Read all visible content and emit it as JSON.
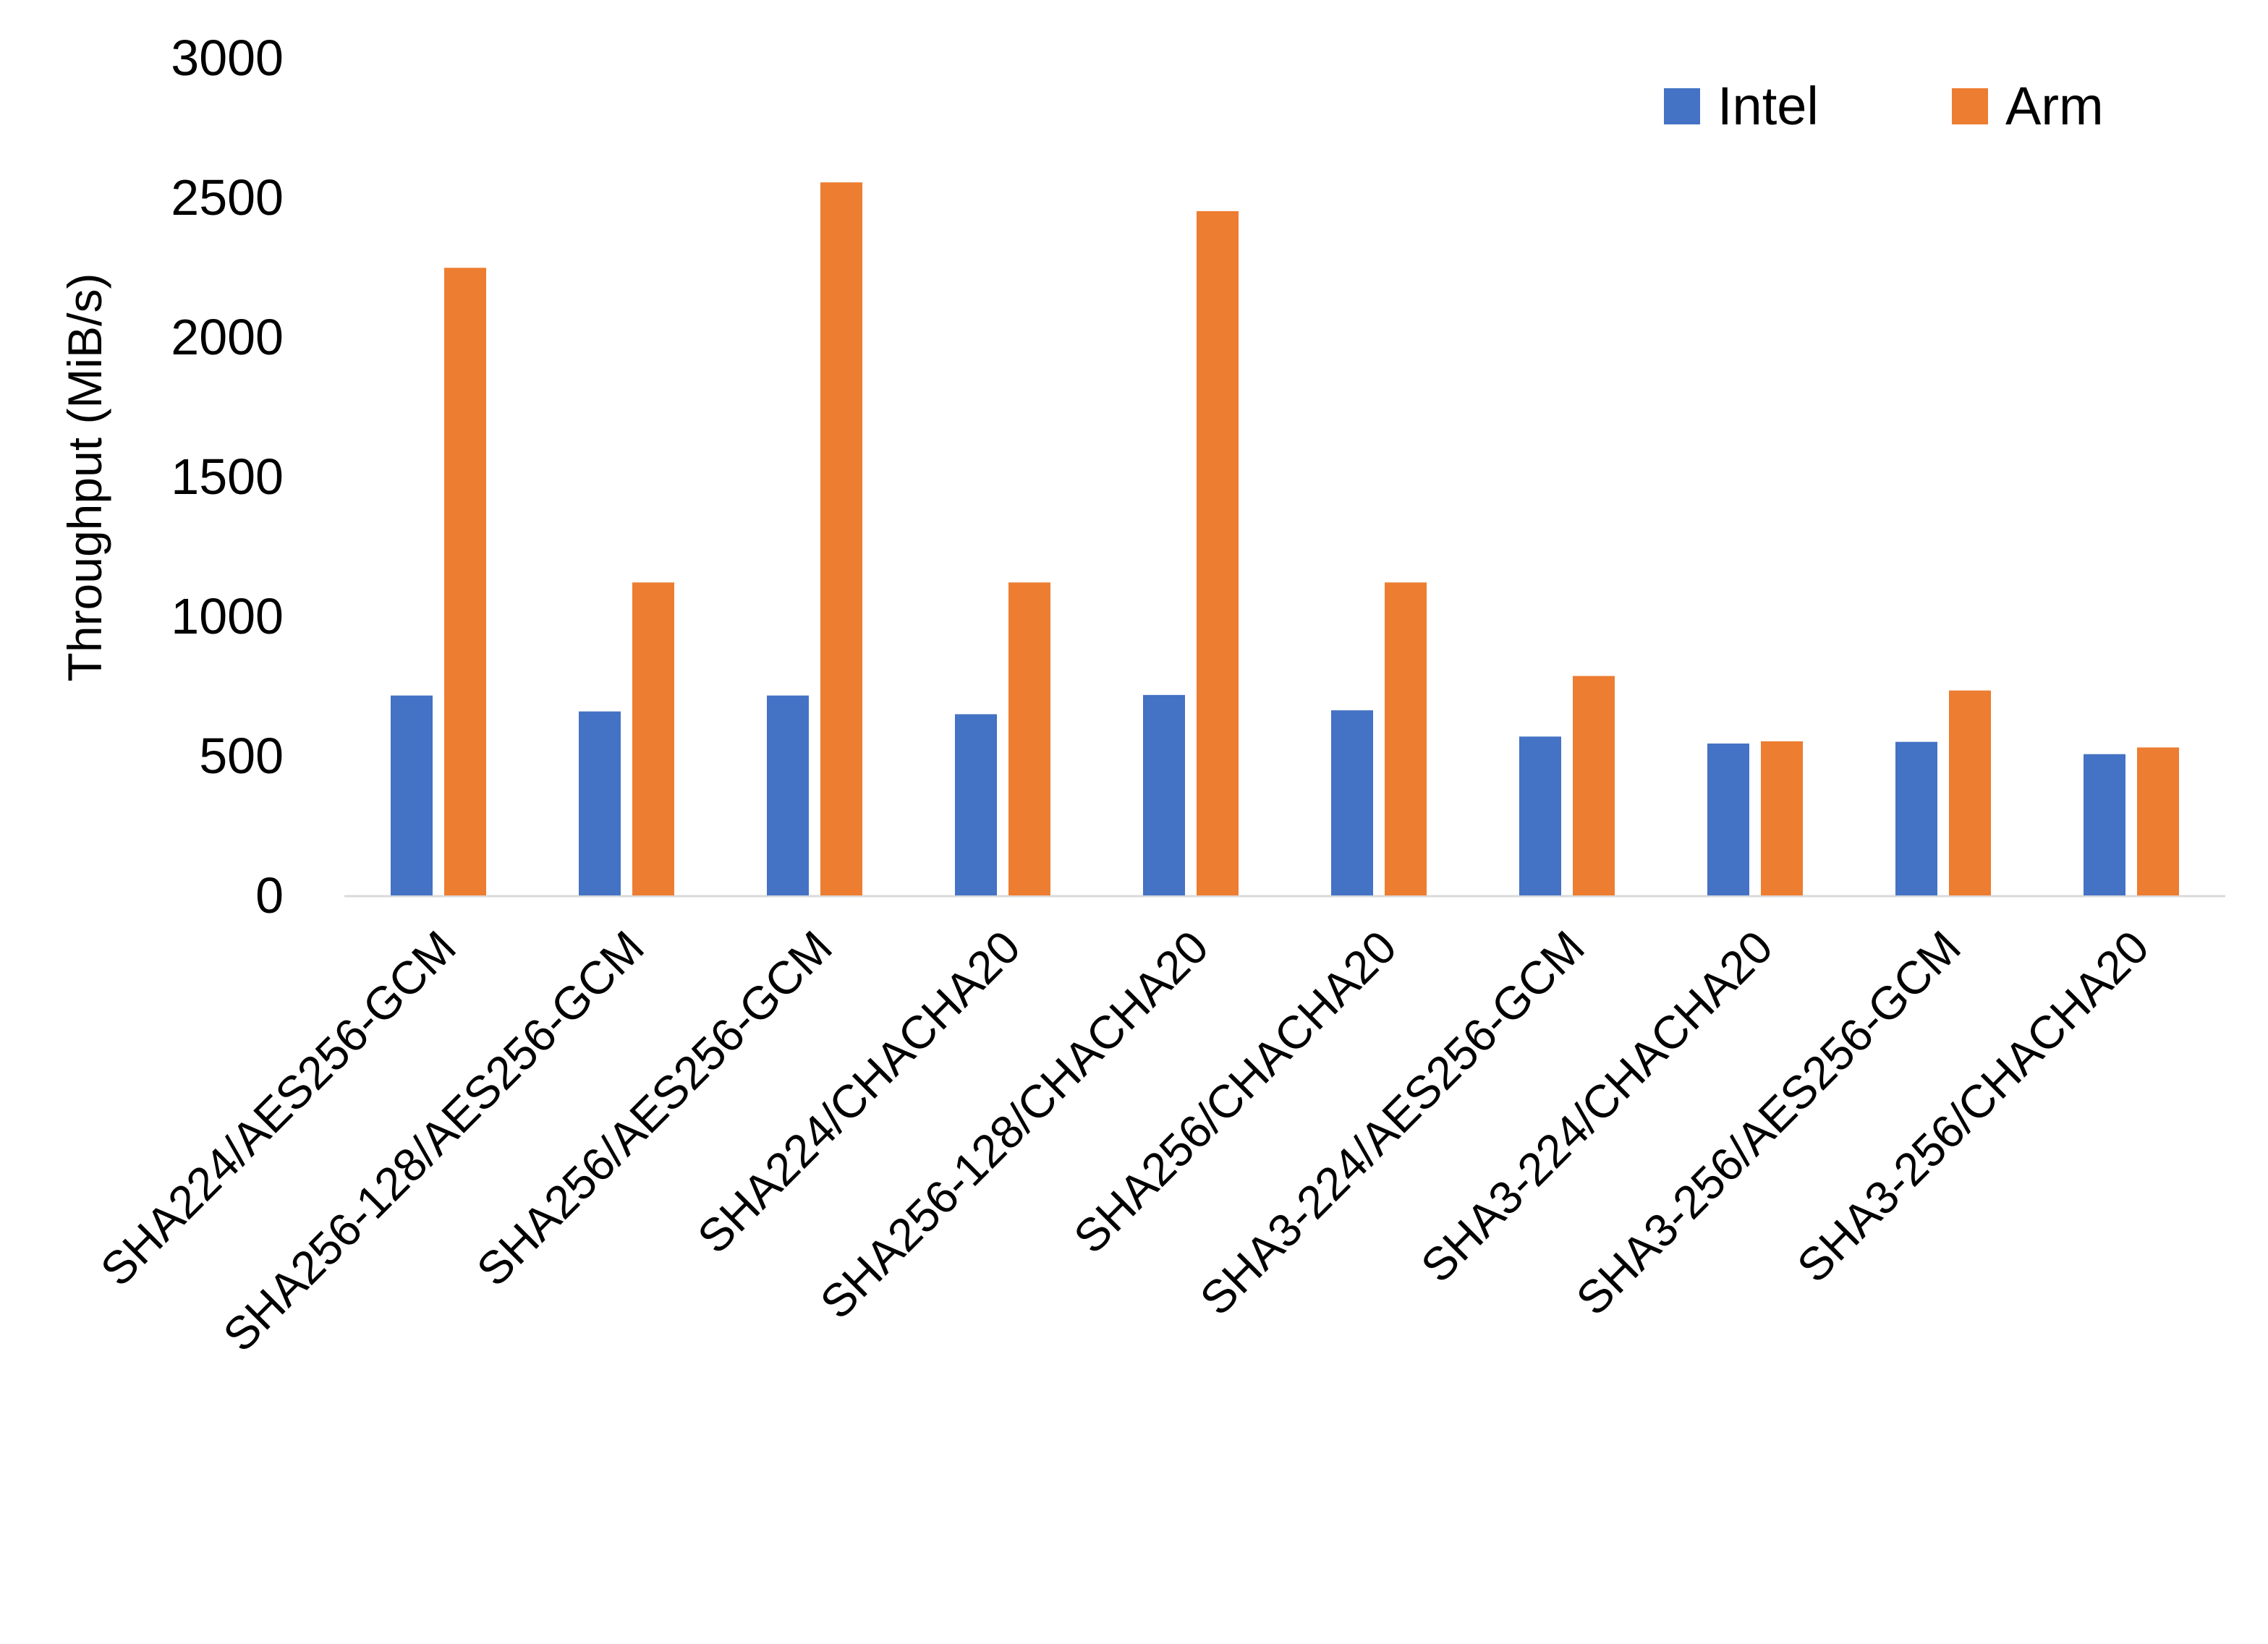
{
  "chart_data": {
    "type": "bar",
    "title": "",
    "xlabel": "",
    "ylabel": "Throughput (MiB/s)",
    "ylim": [
      0,
      3000
    ],
    "yticks": [
      0,
      500,
      1000,
      1500,
      2000,
      2500,
      3000
    ],
    "grid": false,
    "legend_position": "top-right",
    "categories": [
      "SHA224/AES256-GCM",
      "SHA256-128/AES256-GCM",
      "SHA256/AES256-GCM",
      "SHA224/CHACHA20",
      "SHA256-128/CHACHA20",
      "SHA256/CHACHA20",
      "SHA3-224/AES256-GCM",
      "SHA3-224/CHACHA20",
      "SHA3-256/AES256-GCM",
      "SHA3-256/CHACHA20"
    ],
    "series": [
      {
        "name": "Intel",
        "color": "#4472C4",
        "values": [
          716,
          659,
          716,
          649,
          718,
          663,
          569,
          544,
          550,
          506
        ]
      },
      {
        "name": "Arm",
        "color": "#ED7D31",
        "values": [
          2248,
          1121,
          2554,
          1121,
          2451,
          1121,
          786,
          552,
          734,
          530
        ]
      }
    ]
  }
}
